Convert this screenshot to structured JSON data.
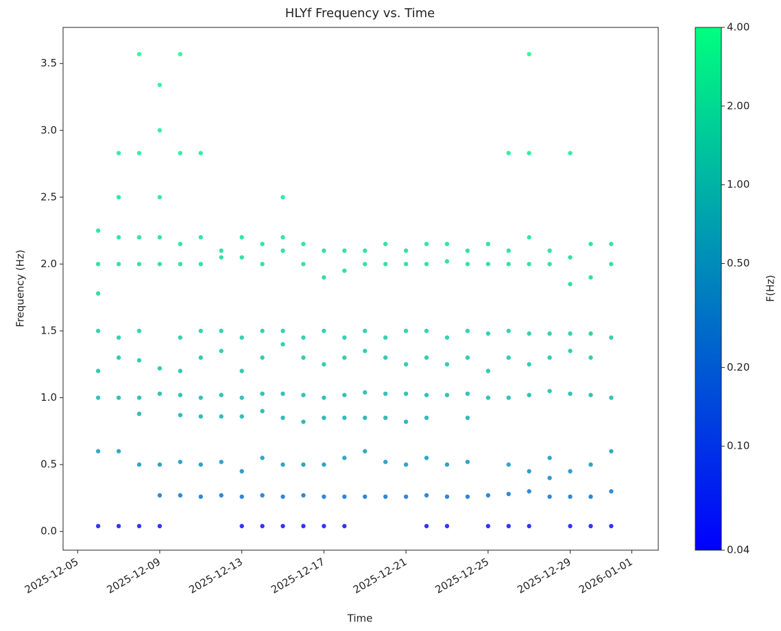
{
  "chart_data": {
    "type": "scatter",
    "title": "HLYf Frequency vs. Time",
    "x_label": "Time",
    "y_label": "Frequency (Hz)",
    "colorbar_label": "F(Hz)",
    "colormap": "winter",
    "color_scale": "log",
    "clim": [
      0.04,
      4
    ],
    "cticks": [
      0.04,
      {
        "value": 0.1,
        "label": "0.10"
      },
      {
        "value": 0.2,
        "label": "0.20"
      },
      {
        "value": 0.5,
        "label": "0.50"
      },
      {
        "value": 1,
        "label": "1.00"
      },
      {
        "value": 2,
        "label": "2.00"
      },
      {
        "value": 4,
        "label": "4.00"
      }
    ],
    "xlim": [
      "2025-12-04T07:00",
      "2026-01-02T07:00"
    ],
    "xticks": [
      "2025-12-05",
      "2025-12-09",
      "2025-12-13",
      "2025-12-17",
      "2025-12-21",
      "2025-12-25",
      "2025-12-29",
      "2026-01-01"
    ],
    "ylim": [
      -0.14,
      3.77
    ],
    "yticks": [
      {
        "value": 0,
        "label": "0.0"
      },
      {
        "value": 0.5,
        "label": "0.5"
      },
      {
        "value": 1,
        "label": "1.0"
      },
      1.5,
      {
        "value": 2,
        "label": "2.0"
      },
      2.5,
      {
        "value": 3,
        "label": "3.0"
      },
      3.5
    ],
    "x": [
      "2025-12-06",
      "2025-12-06",
      "2025-12-06",
      "2025-12-06",
      "2025-12-06",
      "2025-12-06",
      "2025-12-06",
      "2025-12-06",
      "2025-12-07",
      "2025-12-07",
      "2025-12-07",
      "2025-12-07",
      "2025-12-07",
      "2025-12-07",
      "2025-12-07",
      "2025-12-07",
      "2025-12-07",
      "2025-12-08",
      "2025-12-08",
      "2025-12-08",
      "2025-12-08",
      "2025-12-08",
      "2025-12-08",
      "2025-12-08",
      "2025-12-08",
      "2025-12-08",
      "2025-12-08",
      "2025-12-09",
      "2025-12-09",
      "2025-12-09",
      "2025-12-09",
      "2025-12-09",
      "2025-12-09",
      "2025-12-09",
      "2025-12-09",
      "2025-12-09",
      "2025-12-09",
      "2025-12-10",
      "2025-12-10",
      "2025-12-10",
      "2025-12-10",
      "2025-12-10",
      "2025-12-10",
      "2025-12-10",
      "2025-12-10",
      "2025-12-10",
      "2025-12-10",
      "2025-12-11",
      "2025-12-11",
      "2025-12-11",
      "2025-12-11",
      "2025-12-11",
      "2025-12-11",
      "2025-12-11",
      "2025-12-11",
      "2025-12-11",
      "2025-12-12",
      "2025-12-12",
      "2025-12-12",
      "2025-12-12",
      "2025-12-12",
      "2025-12-12",
      "2025-12-12",
      "2025-12-12",
      "2025-12-13",
      "2025-12-13",
      "2025-12-13",
      "2025-12-13",
      "2025-12-13",
      "2025-12-13",
      "2025-12-13",
      "2025-12-13",
      "2025-12-13",
      "2025-12-14",
      "2025-12-14",
      "2025-12-14",
      "2025-12-14",
      "2025-12-14",
      "2025-12-14",
      "2025-12-14",
      "2025-12-14",
      "2025-12-14",
      "2025-12-15",
      "2025-12-15",
      "2025-12-15",
      "2025-12-15",
      "2025-12-15",
      "2025-12-15",
      "2025-12-15",
      "2025-12-15",
      "2025-12-15",
      "2025-12-15",
      "2025-12-16",
      "2025-12-16",
      "2025-12-16",
      "2025-12-16",
      "2025-12-16",
      "2025-12-16",
      "2025-12-16",
      "2025-12-16",
      "2025-12-16",
      "2025-12-17",
      "2025-12-17",
      "2025-12-17",
      "2025-12-17",
      "2025-12-17",
      "2025-12-17",
      "2025-12-17",
      "2025-12-17",
      "2025-12-17",
      "2025-12-18",
      "2025-12-18",
      "2025-12-18",
      "2025-12-18",
      "2025-12-18",
      "2025-12-18",
      "2025-12-18",
      "2025-12-18",
      "2025-12-18",
      "2025-12-19",
      "2025-12-19",
      "2025-12-19",
      "2025-12-19",
      "2025-12-19",
      "2025-12-19",
      "2025-12-19",
      "2025-12-19",
      "2025-12-20",
      "2025-12-20",
      "2025-12-20",
      "2025-12-20",
      "2025-12-20",
      "2025-12-20",
      "2025-12-20",
      "2025-12-20",
      "2025-12-21",
      "2025-12-21",
      "2025-12-21",
      "2025-12-21",
      "2025-12-21",
      "2025-12-21",
      "2025-12-21",
      "2025-12-21",
      "2025-12-22",
      "2025-12-22",
      "2025-12-22",
      "2025-12-22",
      "2025-12-22",
      "2025-12-22",
      "2025-12-22",
      "2025-12-22",
      "2025-12-22",
      "2025-12-23",
      "2025-12-23",
      "2025-12-23",
      "2025-12-23",
      "2025-12-23",
      "2025-12-23",
      "2025-12-23",
      "2025-12-23",
      "2025-12-24",
      "2025-12-24",
      "2025-12-24",
      "2025-12-24",
      "2025-12-24",
      "2025-12-24",
      "2025-12-24",
      "2025-12-24",
      "2025-12-25",
      "2025-12-25",
      "2025-12-25",
      "2025-12-25",
      "2025-12-25",
      "2025-12-25",
      "2025-12-25",
      "2025-12-26",
      "2025-12-26",
      "2025-12-26",
      "2025-12-26",
      "2025-12-26",
      "2025-12-26",
      "2025-12-26",
      "2025-12-26",
      "2025-12-26",
      "2025-12-27",
      "2025-12-27",
      "2025-12-27",
      "2025-12-27",
      "2025-12-27",
      "2025-12-27",
      "2025-12-27",
      "2025-12-27",
      "2025-12-27",
      "2025-12-27",
      "2025-12-28",
      "2025-12-28",
      "2025-12-28",
      "2025-12-28",
      "2025-12-28",
      "2025-12-28",
      "2025-12-28",
      "2025-12-28",
      "2025-12-29",
      "2025-12-29",
      "2025-12-29",
      "2025-12-29",
      "2025-12-29",
      "2025-12-29",
      "2025-12-29",
      "2025-12-29",
      "2025-12-29",
      "2025-12-30",
      "2025-12-30",
      "2025-12-30",
      "2025-12-30",
      "2025-12-30",
      "2025-12-30",
      "2025-12-30",
      "2025-12-30",
      "2025-12-31",
      "2025-12-31",
      "2025-12-31",
      "2025-12-31",
      "2025-12-31",
      "2025-12-31",
      "2025-12-31"
    ],
    "values": [
      0.04,
      0.6,
      1.0,
      1.2,
      1.5,
      1.78,
      2.0,
      2.25,
      0.04,
      0.6,
      1.0,
      1.3,
      1.45,
      2.0,
      2.2,
      2.5,
      2.83,
      0.04,
      0.5,
      0.88,
      1.0,
      1.28,
      1.5,
      2.0,
      2.2,
      2.83,
      3.57,
      0.04,
      0.27,
      0.5,
      1.03,
      1.22,
      2.0,
      2.2,
      2.5,
      3.0,
      3.34,
      0.27,
      0.52,
      0.87,
      1.02,
      1.2,
      1.45,
      2.0,
      2.15,
      2.83,
      3.57,
      0.26,
      0.5,
      0.86,
      1.0,
      1.3,
      1.5,
      2.0,
      2.2,
      2.83,
      0.27,
      0.52,
      0.86,
      1.02,
      1.35,
      1.5,
      2.05,
      2.1,
      0.04,
      0.26,
      0.45,
      0.86,
      1.0,
      1.2,
      1.45,
      2.05,
      2.2,
      0.04,
      0.27,
      0.55,
      0.9,
      1.03,
      1.3,
      1.5,
      2.0,
      2.15,
      0.04,
      0.26,
      0.5,
      0.85,
      1.03,
      1.4,
      1.5,
      2.1,
      2.5,
      2.2,
      0.04,
      0.27,
      0.5,
      0.82,
      1.02,
      1.3,
      1.45,
      2.0,
      2.15,
      0.04,
      0.26,
      0.5,
      0.85,
      1.0,
      1.25,
      1.5,
      1.9,
      2.1,
      0.04,
      0.26,
      0.55,
      0.85,
      1.02,
      1.3,
      1.45,
      1.95,
      2.1,
      0.26,
      0.6,
      0.85,
      1.04,
      1.35,
      1.5,
      2.0,
      2.1,
      0.26,
      0.52,
      0.85,
      1.03,
      1.3,
      1.45,
      2.0,
      2.15,
      0.26,
      0.5,
      0.82,
      1.03,
      1.25,
      1.5,
      2.0,
      2.1,
      0.04,
      0.27,
      0.55,
      0.85,
      1.02,
      1.3,
      1.5,
      2.0,
      2.15,
      0.04,
      0.26,
      0.5,
      1.02,
      1.25,
      1.45,
      2.02,
      2.15,
      0.26,
      0.52,
      0.85,
      1.03,
      1.3,
      1.5,
      2.0,
      2.1,
      0.04,
      0.27,
      1.0,
      1.2,
      1.48,
      2.0,
      2.15,
      0.04,
      0.28,
      0.5,
      1.0,
      1.3,
      1.5,
      2.0,
      2.1,
      2.83,
      0.04,
      0.3,
      0.45,
      1.02,
      1.25,
      1.48,
      2.0,
      2.2,
      2.83,
      3.57,
      0.26,
      0.4,
      0.55,
      1.05,
      1.3,
      1.48,
      2.0,
      2.1,
      0.04,
      0.26,
      0.45,
      1.03,
      1.35,
      1.48,
      2.05,
      1.85,
      2.83,
      0.04,
      0.26,
      0.5,
      1.02,
      1.3,
      1.48,
      1.9,
      2.15,
      0.04,
      0.3,
      0.6,
      1.0,
      1.45,
      2.0,
      2.15
    ]
  }
}
